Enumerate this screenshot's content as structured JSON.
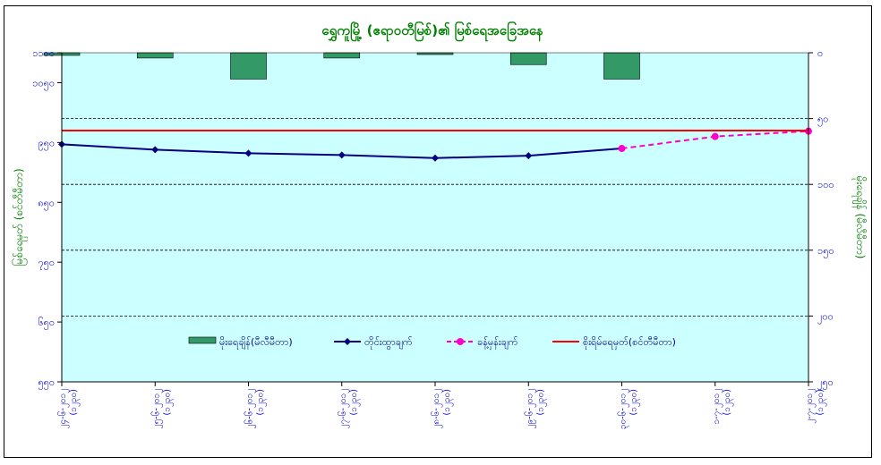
{
  "chart_data": {
    "type": "bar+line",
    "title": "ရွှေကူမြို့ (ဧရာဝတီမြစ်)၏ မြစ်ရေအခြေအနေ",
    "ylabel_left": "မြစ်ရေမှတ် (စင်တီမီတာ)",
    "ylabel_right": "မိုးရေချိန် (မီလီမီတာ)",
    "x_labels": [
      {
        "date": "၂၄-၆-၂၀၁၂",
        "time": "(၁၂၃၀)"
      },
      {
        "date": "၂၅-၆-၂၀၁၂",
        "time": "(၁၂၃၀)"
      },
      {
        "date": "၂၆-၆-၂၀၁၂",
        "time": "(၁၂၃၀)"
      },
      {
        "date": "၂၇-၆-၂၀၁၂",
        "time": "(၁၂၃၀)"
      },
      {
        "date": "၂၈-၆-၂၀၁၂",
        "time": "(၁၂၃၀)"
      },
      {
        "date": "၂၉-၆-၂၀၁၂",
        "time": "(၁၂၃၀)"
      },
      {
        "date": "၃၀-၆-၂၀၁၂",
        "time": "(၁၂၃၀)"
      },
      {
        "date": "၁-၇-၂၀၁၂",
        "time": "(၁၂၃၀)"
      },
      {
        "date": "၂-၇-၂၀၁၂",
        "time": "(၁၂၃၀)"
      }
    ],
    "left_axis": {
      "min": 550,
      "max": 1100,
      "ticks": [
        550,
        650,
        750,
        850,
        950,
        1050,
        1100
      ],
      "tick_labels": [
        "၅၅၀",
        "၆၅၀",
        "၇၅၀",
        "၈၅၀",
        "၉၅၀",
        "၁၀၅၀",
        "၁၁၀၀"
      ]
    },
    "right_axis": {
      "min": 0,
      "max": 250,
      "reversed": true,
      "ticks": [
        0,
        50,
        100,
        150,
        200,
        250
      ],
      "tick_labels": [
        "၀",
        "၅၀",
        "၁၀၀",
        "၁၅၀",
        "၂၀၀",
        "၂၅၀"
      ]
    },
    "grid": "horizontal-dashed",
    "background": "#ccffff",
    "legend_position": "inside-bottom",
    "series": [
      {
        "name": "မိုးရေချိန်(မီလီမီတာ)",
        "kind": "bar",
        "axis": "right",
        "color": "#339966",
        "x_index": [
          0,
          1,
          2,
          3,
          4,
          5,
          6
        ],
        "values": [
          2,
          4,
          20,
          4,
          0,
          9,
          20
        ]
      },
      {
        "name": "တိုင်းထွာချက်",
        "kind": "line",
        "axis": "left",
        "color": "#000080",
        "marker": "diamond",
        "x_index": [
          0,
          1,
          2,
          3,
          4,
          5,
          6
        ],
        "values": [
          947,
          938,
          932,
          929,
          924,
          928,
          940
        ]
      },
      {
        "name": "ခန့်မှန်းချက်",
        "kind": "line",
        "axis": "left",
        "color": "#ff00cc",
        "dash": true,
        "marker": "circle",
        "x_index": [
          6,
          7,
          8
        ],
        "values": [
          940,
          960,
          969
        ]
      },
      {
        "name": "စိုးရိမ်ရေမှတ်(စင်တီမီတာ)",
        "kind": "hline",
        "axis": "left",
        "color": "#ff0000",
        "value": 970
      }
    ]
  }
}
